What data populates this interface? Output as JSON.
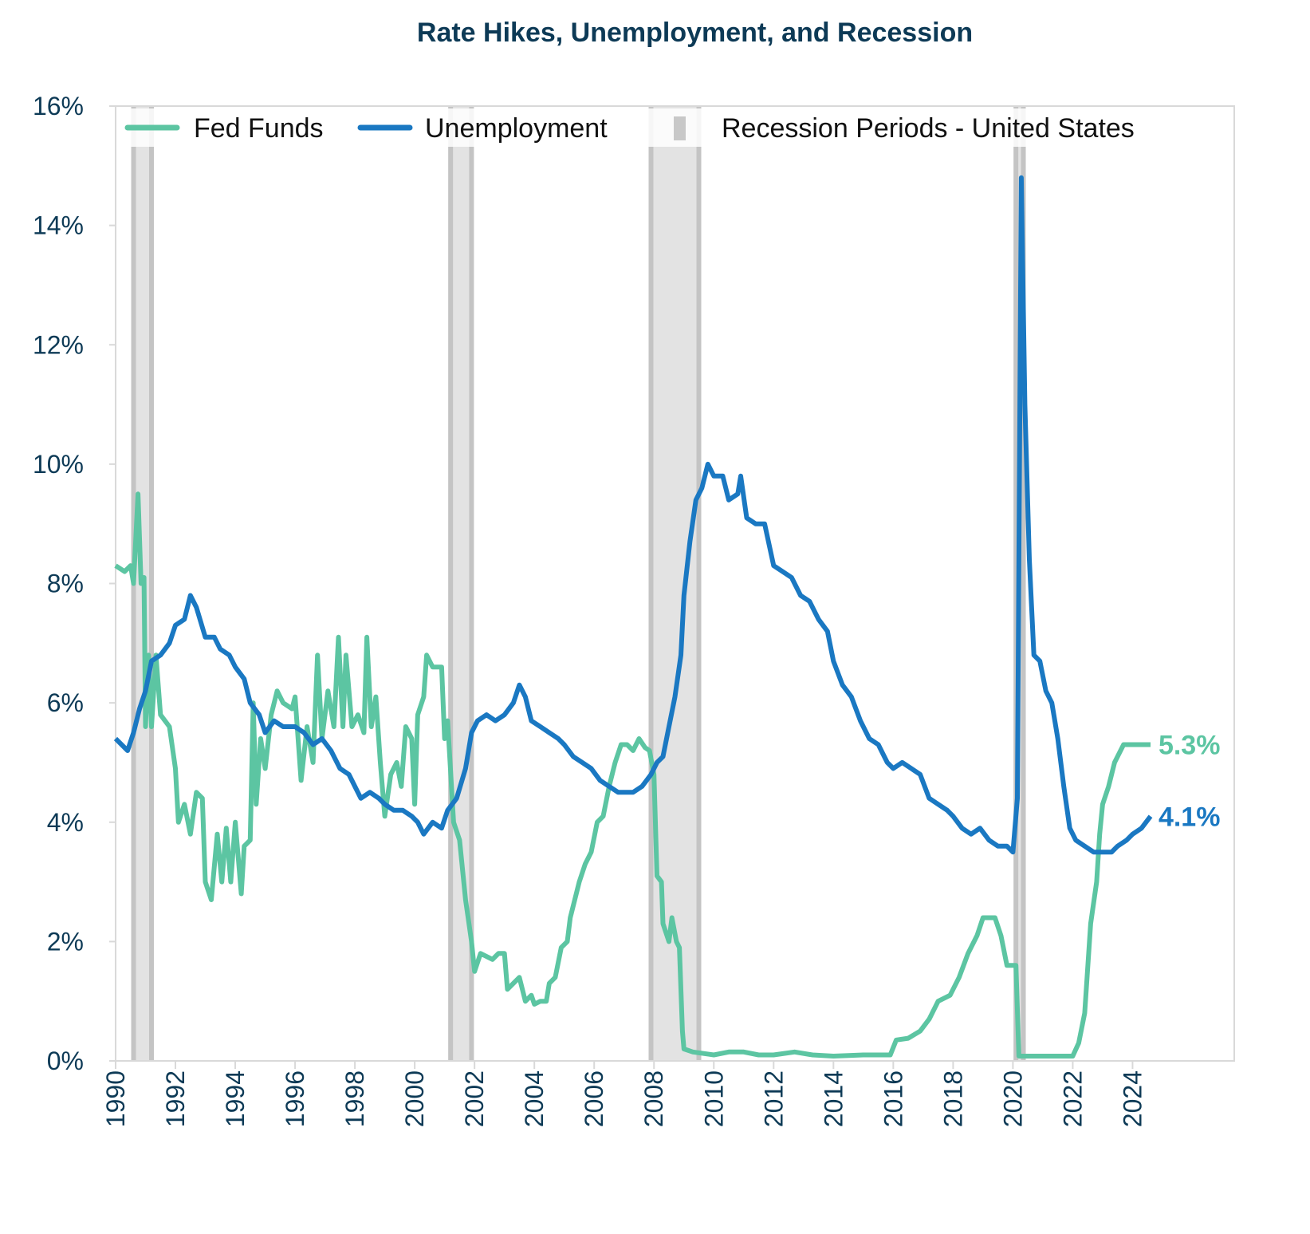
{
  "chart_data": {
    "type": "line",
    "title": "Rate Hikes, Unemployment, and Recession",
    "xlabel": "",
    "ylabel": "",
    "xlim": [
      1990,
      2027.4
    ],
    "ylim": [
      0,
      16
    ],
    "x_ticks": [
      "1990",
      "1992",
      "1994",
      "1996",
      "1998",
      "2000",
      "2002",
      "2004",
      "2006",
      "2008",
      "2010",
      "2012",
      "2014",
      "2016",
      "2018",
      "2020",
      "2022",
      "2024"
    ],
    "y_ticks": [
      "0%",
      "2%",
      "4%",
      "6%",
      "8%",
      "10%",
      "12%",
      "14%",
      "16%"
    ],
    "grid": false,
    "legend_position": "top",
    "legend": [
      "Fed Funds",
      "Unemployment",
      "Recession Periods - United States"
    ],
    "colors": {
      "fed_funds": "#5cc5a2",
      "unemployment": "#1a78c2",
      "recession": "#e3e3e3",
      "recession_edge": "#c4c4c4",
      "title": "#0d3a56"
    },
    "recessions": [
      [
        1990.6,
        1991.2
      ],
      [
        2001.2,
        2001.9
      ],
      [
        2007.9,
        2009.5
      ],
      [
        2020.1,
        2020.35
      ]
    ],
    "series": [
      {
        "name": "Fed Funds",
        "end_label": "5.3%",
        "points": [
          [
            1990.0,
            8.3
          ],
          [
            1990.3,
            8.2
          ],
          [
            1990.5,
            8.3
          ],
          [
            1990.6,
            8.0
          ],
          [
            1990.75,
            9.5
          ],
          [
            1990.85,
            8.0
          ],
          [
            1990.95,
            8.1
          ],
          [
            1991.0,
            5.6
          ],
          [
            1991.1,
            6.8
          ],
          [
            1991.2,
            5.6
          ],
          [
            1991.35,
            6.8
          ],
          [
            1991.5,
            5.8
          ],
          [
            1991.8,
            5.6
          ],
          [
            1992.0,
            4.9
          ],
          [
            1992.1,
            4.0
          ],
          [
            1992.3,
            4.3
          ],
          [
            1992.5,
            3.8
          ],
          [
            1992.7,
            4.5
          ],
          [
            1992.9,
            4.4
          ],
          [
            1993.0,
            3.0
          ],
          [
            1993.2,
            2.7
          ],
          [
            1993.4,
            3.8
          ],
          [
            1993.55,
            3.0
          ],
          [
            1993.7,
            3.9
          ],
          [
            1993.85,
            3.0
          ],
          [
            1994.0,
            4.0
          ],
          [
            1994.2,
            2.8
          ],
          [
            1994.3,
            3.6
          ],
          [
            1994.5,
            3.7
          ],
          [
            1994.6,
            6.0
          ],
          [
            1994.7,
            4.3
          ],
          [
            1994.85,
            5.4
          ],
          [
            1995.0,
            4.9
          ],
          [
            1995.2,
            5.8
          ],
          [
            1995.4,
            6.2
          ],
          [
            1995.6,
            6.0
          ],
          [
            1995.9,
            5.9
          ],
          [
            1996.0,
            6.1
          ],
          [
            1996.2,
            4.7
          ],
          [
            1996.4,
            5.6
          ],
          [
            1996.6,
            5.0
          ],
          [
            1996.75,
            6.8
          ],
          [
            1996.9,
            5.4
          ],
          [
            1997.1,
            6.2
          ],
          [
            1997.3,
            5.6
          ],
          [
            1997.45,
            7.1
          ],
          [
            1997.6,
            5.6
          ],
          [
            1997.7,
            6.8
          ],
          [
            1997.9,
            5.6
          ],
          [
            1998.1,
            5.8
          ],
          [
            1998.3,
            5.5
          ],
          [
            1998.4,
            7.1
          ],
          [
            1998.55,
            5.6
          ],
          [
            1998.7,
            6.1
          ],
          [
            1998.85,
            5.0
          ],
          [
            1999.0,
            4.1
          ],
          [
            1999.2,
            4.8
          ],
          [
            1999.4,
            5.0
          ],
          [
            1999.55,
            4.6
          ],
          [
            1999.7,
            5.6
          ],
          [
            1999.9,
            5.4
          ],
          [
            2000.0,
            4.3
          ],
          [
            2000.1,
            5.8
          ],
          [
            2000.3,
            6.1
          ],
          [
            2000.4,
            6.8
          ],
          [
            2000.6,
            6.6
          ],
          [
            2000.9,
            6.6
          ],
          [
            2001.0,
            5.4
          ],
          [
            2001.1,
            5.7
          ],
          [
            2001.3,
            4.0
          ],
          [
            2001.5,
            3.7
          ],
          [
            2001.7,
            2.7
          ],
          [
            2001.9,
            2.0
          ],
          [
            2002.0,
            1.5
          ],
          [
            2002.2,
            1.8
          ],
          [
            2002.6,
            1.7
          ],
          [
            2002.8,
            1.8
          ],
          [
            2003.0,
            1.8
          ],
          [
            2003.1,
            1.2
          ],
          [
            2003.3,
            1.3
          ],
          [
            2003.5,
            1.4
          ],
          [
            2003.7,
            1.0
          ],
          [
            2003.9,
            1.1
          ],
          [
            2004.0,
            0.95
          ],
          [
            2004.2,
            1.0
          ],
          [
            2004.4,
            1.0
          ],
          [
            2004.5,
            1.3
          ],
          [
            2004.7,
            1.4
          ],
          [
            2004.9,
            1.9
          ],
          [
            2005.1,
            2.0
          ],
          [
            2005.2,
            2.4
          ],
          [
            2005.5,
            3.0
          ],
          [
            2005.7,
            3.3
          ],
          [
            2005.9,
            3.5
          ],
          [
            2006.1,
            4.0
          ],
          [
            2006.3,
            4.1
          ],
          [
            2006.5,
            4.6
          ],
          [
            2006.7,
            5.0
          ],
          [
            2006.9,
            5.3
          ],
          [
            2007.1,
            5.3
          ],
          [
            2007.3,
            5.2
          ],
          [
            2007.5,
            5.4
          ],
          [
            2007.7,
            5.25
          ],
          [
            2007.85,
            5.2
          ],
          [
            2008.0,
            4.8
          ],
          [
            2008.1,
            3.1
          ],
          [
            2008.25,
            3.0
          ],
          [
            2008.3,
            2.3
          ],
          [
            2008.5,
            2.0
          ],
          [
            2008.6,
            2.4
          ],
          [
            2008.75,
            2.0
          ],
          [
            2008.85,
            1.9
          ],
          [
            2008.95,
            0.5
          ],
          [
            2009.0,
            0.2
          ],
          [
            2009.3,
            0.15
          ],
          [
            2010.0,
            0.1
          ],
          [
            2010.5,
            0.15
          ],
          [
            2011.0,
            0.15
          ],
          [
            2011.5,
            0.1
          ],
          [
            2012.0,
            0.1
          ],
          [
            2012.7,
            0.15
          ],
          [
            2013.3,
            0.1
          ],
          [
            2014.0,
            0.08
          ],
          [
            2015.0,
            0.1
          ],
          [
            2015.9,
            0.1
          ],
          [
            2016.1,
            0.35
          ],
          [
            2016.5,
            0.38
          ],
          [
            2016.9,
            0.5
          ],
          [
            2017.2,
            0.7
          ],
          [
            2017.5,
            1.0
          ],
          [
            2017.9,
            1.1
          ],
          [
            2018.2,
            1.4
          ],
          [
            2018.5,
            1.8
          ],
          [
            2018.8,
            2.1
          ],
          [
            2019.0,
            2.4
          ],
          [
            2019.4,
            2.4
          ],
          [
            2019.6,
            2.1
          ],
          [
            2019.8,
            1.6
          ],
          [
            2020.1,
            1.6
          ],
          [
            2020.2,
            0.08
          ],
          [
            2021.0,
            0.08
          ],
          [
            2022.0,
            0.08
          ],
          [
            2022.2,
            0.3
          ],
          [
            2022.4,
            0.8
          ],
          [
            2022.6,
            2.3
          ],
          [
            2022.8,
            3.0
          ],
          [
            2022.9,
            3.8
          ],
          [
            2023.0,
            4.3
          ],
          [
            2023.2,
            4.6
          ],
          [
            2023.4,
            5.0
          ],
          [
            2023.6,
            5.2
          ],
          [
            2023.7,
            5.3
          ],
          [
            2024.6,
            5.3
          ]
        ]
      },
      {
        "name": "Unemployment",
        "end_label": "4.1%",
        "points": [
          [
            1990.0,
            5.4
          ],
          [
            1990.2,
            5.3
          ],
          [
            1990.4,
            5.2
          ],
          [
            1990.6,
            5.5
          ],
          [
            1990.8,
            5.9
          ],
          [
            1991.0,
            6.2
          ],
          [
            1991.2,
            6.7
          ],
          [
            1991.5,
            6.8
          ],
          [
            1991.8,
            7.0
          ],
          [
            1992.0,
            7.3
          ],
          [
            1992.3,
            7.4
          ],
          [
            1992.5,
            7.8
          ],
          [
            1992.7,
            7.6
          ],
          [
            1993.0,
            7.1
          ],
          [
            1993.3,
            7.1
          ],
          [
            1993.5,
            6.9
          ],
          [
            1993.8,
            6.8
          ],
          [
            1994.0,
            6.6
          ],
          [
            1994.3,
            6.4
          ],
          [
            1994.5,
            6.0
          ],
          [
            1994.8,
            5.8
          ],
          [
            1995.0,
            5.5
          ],
          [
            1995.3,
            5.7
          ],
          [
            1995.6,
            5.6
          ],
          [
            1996.0,
            5.6
          ],
          [
            1996.3,
            5.5
          ],
          [
            1996.6,
            5.3
          ],
          [
            1996.9,
            5.4
          ],
          [
            1997.2,
            5.2
          ],
          [
            1997.5,
            4.9
          ],
          [
            1997.8,
            4.8
          ],
          [
            1998.0,
            4.6
          ],
          [
            1998.2,
            4.4
          ],
          [
            1998.5,
            4.5
          ],
          [
            1998.8,
            4.4
          ],
          [
            1999.0,
            4.3
          ],
          [
            1999.3,
            4.2
          ],
          [
            1999.6,
            4.2
          ],
          [
            1999.9,
            4.1
          ],
          [
            2000.1,
            4.0
          ],
          [
            2000.3,
            3.8
          ],
          [
            2000.6,
            4.0
          ],
          [
            2000.9,
            3.9
          ],
          [
            2001.1,
            4.2
          ],
          [
            2001.4,
            4.4
          ],
          [
            2001.7,
            4.9
          ],
          [
            2001.9,
            5.5
          ],
          [
            2002.1,
            5.7
          ],
          [
            2002.4,
            5.8
          ],
          [
            2002.7,
            5.7
          ],
          [
            2003.0,
            5.8
          ],
          [
            2003.3,
            6.0
          ],
          [
            2003.5,
            6.3
          ],
          [
            2003.7,
            6.1
          ],
          [
            2003.9,
            5.7
          ],
          [
            2004.2,
            5.6
          ],
          [
            2004.5,
            5.5
          ],
          [
            2004.8,
            5.4
          ],
          [
            2005.0,
            5.3
          ],
          [
            2005.3,
            5.1
          ],
          [
            2005.6,
            5.0
          ],
          [
            2005.9,
            4.9
          ],
          [
            2006.2,
            4.7
          ],
          [
            2006.5,
            4.6
          ],
          [
            2006.8,
            4.5
          ],
          [
            2007.0,
            4.5
          ],
          [
            2007.3,
            4.5
          ],
          [
            2007.6,
            4.6
          ],
          [
            2007.9,
            4.8
          ],
          [
            2008.1,
            5.0
          ],
          [
            2008.3,
            5.1
          ],
          [
            2008.5,
            5.6
          ],
          [
            2008.7,
            6.1
          ],
          [
            2008.9,
            6.8
          ],
          [
            2009.0,
            7.8
          ],
          [
            2009.2,
            8.7
          ],
          [
            2009.4,
            9.4
          ],
          [
            2009.6,
            9.6
          ],
          [
            2009.8,
            10.0
          ],
          [
            2010.0,
            9.8
          ],
          [
            2010.3,
            9.8
          ],
          [
            2010.5,
            9.4
          ],
          [
            2010.8,
            9.5
          ],
          [
            2010.9,
            9.8
          ],
          [
            2011.1,
            9.1
          ],
          [
            2011.4,
            9.0
          ],
          [
            2011.7,
            9.0
          ],
          [
            2012.0,
            8.3
          ],
          [
            2012.3,
            8.2
          ],
          [
            2012.6,
            8.1
          ],
          [
            2012.9,
            7.8
          ],
          [
            2013.2,
            7.7
          ],
          [
            2013.5,
            7.4
          ],
          [
            2013.8,
            7.2
          ],
          [
            2014.0,
            6.7
          ],
          [
            2014.3,
            6.3
          ],
          [
            2014.6,
            6.1
          ],
          [
            2014.9,
            5.7
          ],
          [
            2015.2,
            5.4
          ],
          [
            2015.5,
            5.3
          ],
          [
            2015.8,
            5.0
          ],
          [
            2016.0,
            4.9
          ],
          [
            2016.3,
            5.0
          ],
          [
            2016.6,
            4.9
          ],
          [
            2016.9,
            4.8
          ],
          [
            2017.2,
            4.4
          ],
          [
            2017.5,
            4.3
          ],
          [
            2017.8,
            4.2
          ],
          [
            2018.0,
            4.1
          ],
          [
            2018.3,
            3.9
          ],
          [
            2018.6,
            3.8
          ],
          [
            2018.9,
            3.9
          ],
          [
            2019.2,
            3.7
          ],
          [
            2019.5,
            3.6
          ],
          [
            2019.8,
            3.6
          ],
          [
            2020.0,
            3.5
          ],
          [
            2020.15,
            4.4
          ],
          [
            2020.28,
            14.8
          ],
          [
            2020.4,
            11.0
          ],
          [
            2020.55,
            8.4
          ],
          [
            2020.7,
            6.8
          ],
          [
            2020.9,
            6.7
          ],
          [
            2021.1,
            6.2
          ],
          [
            2021.3,
            6.0
          ],
          [
            2021.5,
            5.4
          ],
          [
            2021.7,
            4.6
          ],
          [
            2021.9,
            3.9
          ],
          [
            2022.1,
            3.7
          ],
          [
            2022.4,
            3.6
          ],
          [
            2022.7,
            3.5
          ],
          [
            2023.0,
            3.5
          ],
          [
            2023.3,
            3.5
          ],
          [
            2023.5,
            3.6
          ],
          [
            2023.8,
            3.7
          ],
          [
            2024.0,
            3.8
          ],
          [
            2024.3,
            3.9
          ],
          [
            2024.6,
            4.1
          ]
        ]
      }
    ]
  }
}
